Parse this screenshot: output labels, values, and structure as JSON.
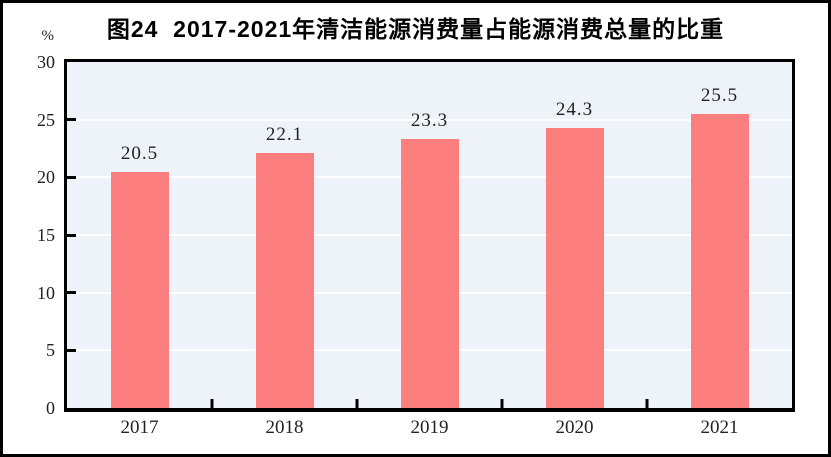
{
  "figure": {
    "title": "图24  2017-2021年清洁能源消费量占能源消费总量的比重",
    "unit_label": "%"
  },
  "chart_data": {
    "type": "bar",
    "title": "图24  2017-2021年清洁能源消费量占能源消费总量的比重",
    "unit": "%",
    "categories": [
      "2017",
      "2018",
      "2019",
      "2020",
      "2021"
    ],
    "values": [
      20.5,
      22.1,
      23.3,
      24.3,
      25.5
    ],
    "value_labels": [
      "20.5",
      "22.1",
      "23.3",
      "24.3",
      "25.5"
    ],
    "xlabel": "",
    "ylabel": "%",
    "ylim": [
      0,
      30
    ],
    "yticks": [
      0,
      5,
      10,
      15,
      20,
      25,
      30
    ],
    "grid": true,
    "grid_color": "#ffffff",
    "plot_background": "#edf3f8",
    "bar_color": "#fd7e7e",
    "axis_color": "#000000",
    "legend_position": "none"
  }
}
